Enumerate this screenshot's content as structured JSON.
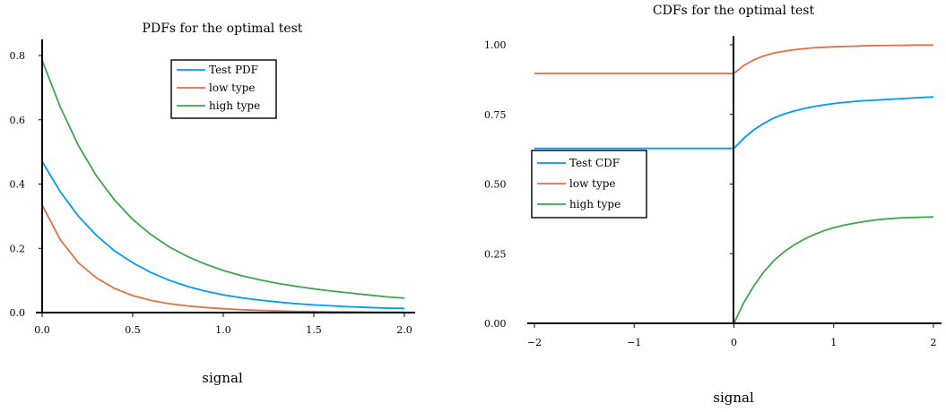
{
  "colors": {
    "test": "#009AFA",
    "low": "#E26F46",
    "high": "#3EA44E"
  },
  "chart_data": [
    {
      "type": "line",
      "title": "PDFs for the optimal test",
      "xlabel": "signal",
      "ylabel": "",
      "xlim": [
        0,
        2
      ],
      "ylim": [
        0,
        0.8
      ],
      "xticks": [
        "0.0",
        "0.5",
        "1.0",
        "1.5",
        "2.0"
      ],
      "yticks": [
        "0.0",
        "0.2",
        "0.4",
        "0.6",
        "0.8"
      ],
      "grid": false,
      "legend_position": "top-right",
      "x": [
        0.0,
        0.1,
        0.2,
        0.3,
        0.4,
        0.5,
        0.6,
        0.7,
        0.8,
        0.9,
        1.0,
        1.1,
        1.2,
        1.3,
        1.4,
        1.5,
        1.6,
        1.7,
        1.8,
        1.9,
        2.0
      ],
      "series": [
        {
          "name": "Test PDF",
          "color_key": "test",
          "values": [
            0.47,
            0.376,
            0.3,
            0.24,
            0.192,
            0.155,
            0.125,
            0.101,
            0.082,
            0.067,
            0.055,
            0.046,
            0.039,
            0.033,
            0.028,
            0.024,
            0.021,
            0.018,
            0.016,
            0.014,
            0.013
          ]
        },
        {
          "name": "low type",
          "color_key": "low",
          "values": [
            0.335,
            0.227,
            0.155,
            0.108,
            0.075,
            0.053,
            0.038,
            0.028,
            0.021,
            0.016,
            0.012,
            0.009,
            0.007,
            0.005,
            0.004,
            0.003,
            0.0025,
            0.002,
            0.0015,
            0.001,
            0.001
          ]
        },
        {
          "name": "high type",
          "color_key": "high",
          "values": [
            0.785,
            0.64,
            0.52,
            0.425,
            0.35,
            0.29,
            0.243,
            0.205,
            0.175,
            0.151,
            0.131,
            0.115,
            0.102,
            0.091,
            0.082,
            0.074,
            0.067,
            0.061,
            0.055,
            0.049,
            0.045
          ]
        }
      ]
    },
    {
      "type": "line",
      "title": "CDFs for the optimal test",
      "xlabel": "signal",
      "ylabel": "",
      "xlim": [
        -2,
        2
      ],
      "ylim": [
        0,
        1
      ],
      "xticks": [
        "−2",
        "−1",
        "0",
        "1",
        "2"
      ],
      "yticks": [
        "0.00",
        "0.25",
        "0.50",
        "0.75",
        "1.00"
      ],
      "grid": false,
      "legend_position": "left-middle",
      "x": [
        -2.0,
        0.0,
        0.1,
        0.2,
        0.3,
        0.4,
        0.5,
        0.6,
        0.7,
        0.8,
        0.9,
        1.0,
        1.1,
        1.2,
        1.3,
        1.4,
        1.5,
        1.6,
        1.7,
        1.8,
        1.9,
        2.0
      ],
      "series": [
        {
          "name": "Test CDF",
          "color_key": "test",
          "values": [
            0.628,
            0.628,
            0.665,
            0.695,
            0.718,
            0.737,
            0.751,
            0.762,
            0.771,
            0.778,
            0.784,
            0.789,
            0.793,
            0.796,
            0.799,
            0.801,
            0.803,
            0.805,
            0.807,
            0.809,
            0.811,
            0.813
          ]
        },
        {
          "name": "low type",
          "color_key": "low",
          "values": [
            0.897,
            0.897,
            0.926,
            0.946,
            0.96,
            0.97,
            0.977,
            0.982,
            0.986,
            0.989,
            0.991,
            0.993,
            0.994,
            0.995,
            0.996,
            0.997,
            0.997,
            0.998,
            0.998,
            0.999,
            0.999,
            0.999
          ]
        },
        {
          "name": "high type",
          "color_key": "high",
          "values": [
            0.0,
            0.0,
            0.075,
            0.135,
            0.185,
            0.225,
            0.256,
            0.281,
            0.301,
            0.318,
            0.332,
            0.343,
            0.352,
            0.359,
            0.365,
            0.37,
            0.374,
            0.377,
            0.379,
            0.38,
            0.381,
            0.382
          ]
        }
      ]
    }
  ]
}
